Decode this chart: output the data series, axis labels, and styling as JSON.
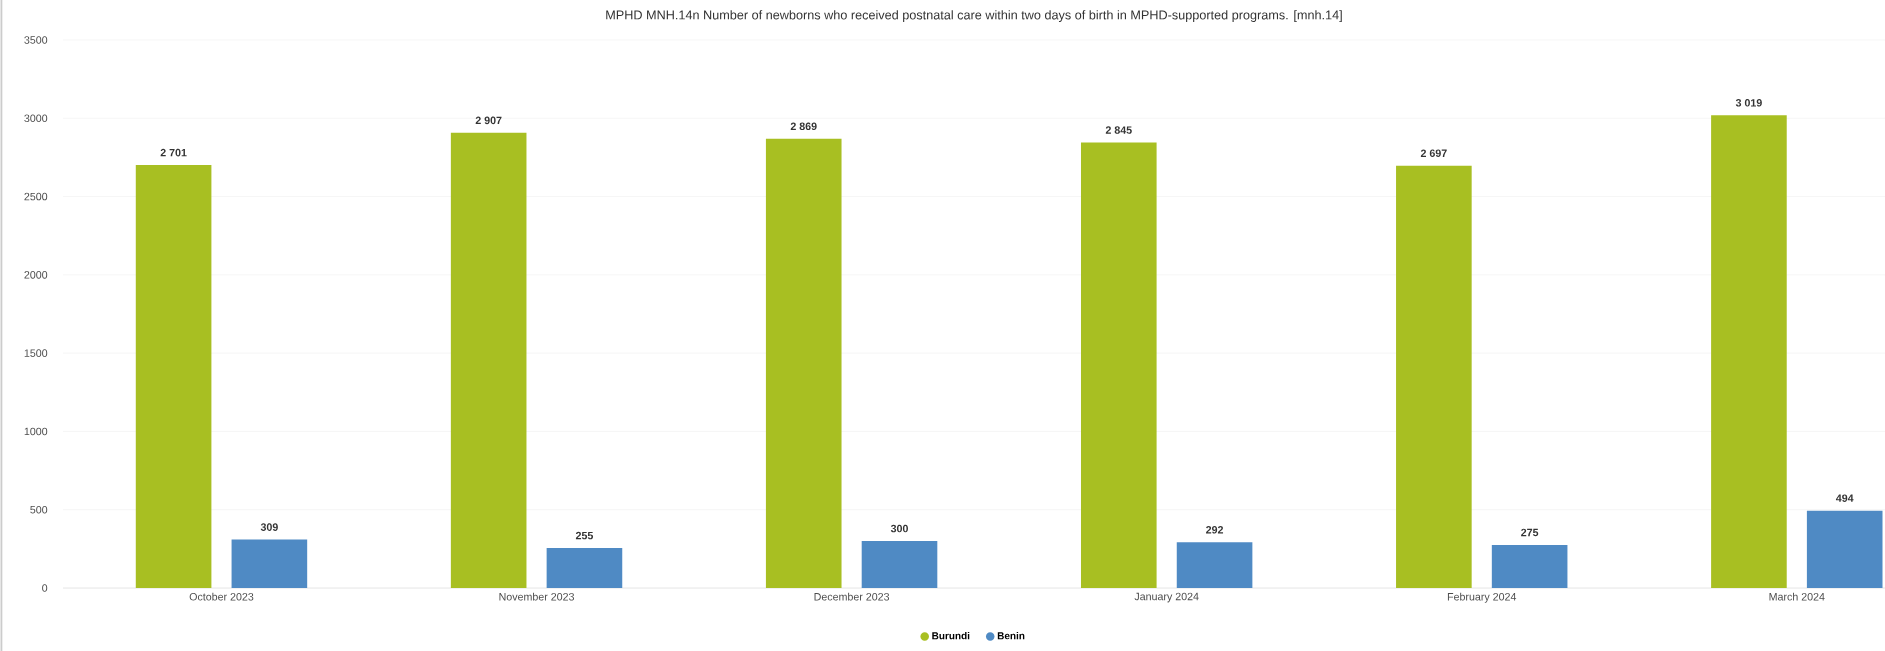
{
  "chart_data": {
    "type": "bar",
    "title": "MPHD MNH.14n Number of newborns who received postnatal care within two days of birth in MPHD-supported programs. [mnh.14]",
    "categories": [
      "October 2023",
      "November 2023",
      "December 2023",
      "January 2024",
      "February 2024",
      "March 2024"
    ],
    "series": [
      {
        "name": "Burundi",
        "color": "#a8bf22",
        "values": [
          2701,
          2907,
          2869,
          2845,
          2697,
          3019
        ],
        "value_labels": [
          "2 701",
          "2 907",
          "2 869",
          "2 845",
          "2 697",
          "3 019"
        ]
      },
      {
        "name": "Benin",
        "color": "#4f8ac4",
        "values": [
          309,
          255,
          300,
          292,
          275,
          494
        ],
        "value_labels": [
          "309",
          "255",
          "300",
          "292",
          "275",
          "494"
        ]
      }
    ],
    "ylim": [
      0,
      3500
    ],
    "yticks": [
      0,
      500,
      1000,
      1500,
      2000,
      2500,
      3000,
      3500
    ],
    "grid": "y",
    "legend": "bottom"
  }
}
